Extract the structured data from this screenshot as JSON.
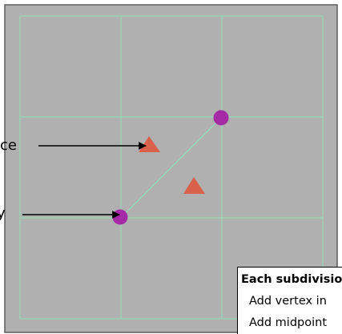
{
  "labels": {
    "upper_left": "ce",
    "lower_left": "y"
  },
  "legend": {
    "title": "Each subdivisio",
    "items": [
      "Add vertex in",
      "Add midpoint"
    ]
  },
  "colors": {
    "canvas_bg": "#b0b0b0",
    "canvas_border": "#5a5a5a",
    "grid_line": "#8fe3b8",
    "vertex": "#a52aa5",
    "triangle": "#d9604a",
    "arrow": "#000000"
  },
  "icons": {
    "vertex": "purple-dot",
    "triangle": "orange-triangle"
  }
}
